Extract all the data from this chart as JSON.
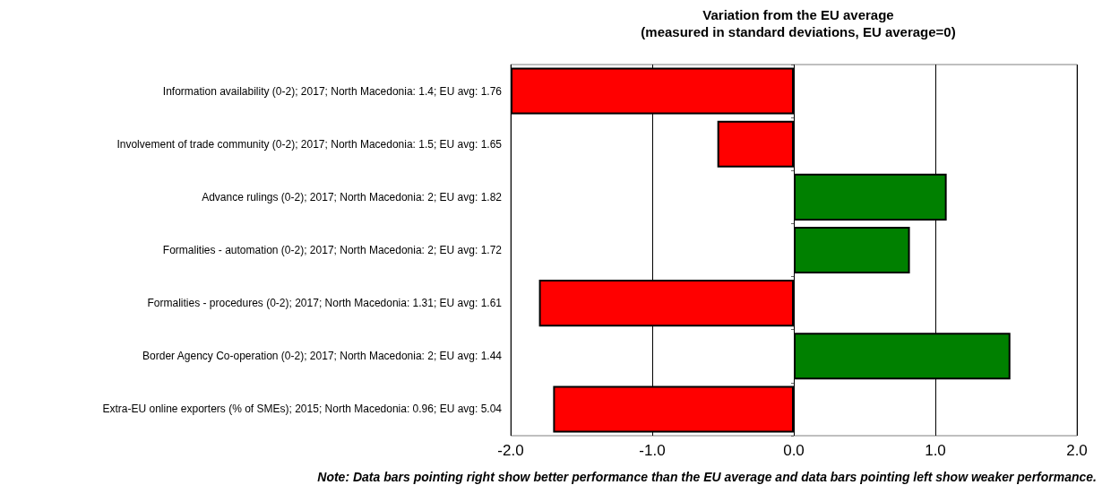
{
  "chart_data": {
    "type": "bar",
    "orientation": "horizontal",
    "title": "Variation from the EU average",
    "subtitle": "(measured in standard deviations, EU average=0)",
    "categories": [
      "Information availability (0-2); 2017; North Macedonia: 1.4; EU avg: 1.76",
      "Involvement of trade community (0-2); 2017; North Macedonia: 1.5; EU avg: 1.65",
      "Advance rulings (0-2); 2017; North Macedonia: 2; EU avg: 1.82",
      "Formalities - automation (0-2); 2017; North Macedonia: 2; EU avg: 1.72",
      "Formalities - procedures (0-2); 2017; North Macedonia: 1.31; EU avg: 1.61",
      "Border Agency Co-operation (0-2); 2017; North Macedonia: 2; EU avg: 1.44",
      "Extra-EU online exporters (% of SMEs); 2015; North Macedonia: 0.96; EU avg: 5.04"
    ],
    "values": [
      -2.0,
      -0.54,
      1.08,
      0.82,
      -1.8,
      1.53,
      -1.7
    ],
    "colors": [
      "#ff0000",
      "#ff0000",
      "#008000",
      "#008000",
      "#ff0000",
      "#008000",
      "#ff0000"
    ],
    "xlim": [
      -2,
      2
    ],
    "xticks": [
      {
        "value": -2,
        "label": "-2.0"
      },
      {
        "value": -1,
        "label": "-1.0"
      },
      {
        "value": 0,
        "label": "0.0"
      },
      {
        "value": 1,
        "label": "1.0"
      },
      {
        "value": 2,
        "label": "2.0"
      }
    ],
    "grid": "x",
    "annotations": [
      "Note: Data bars pointing right show better performance than the EU average and data bars pointing left show weaker performance."
    ]
  }
}
